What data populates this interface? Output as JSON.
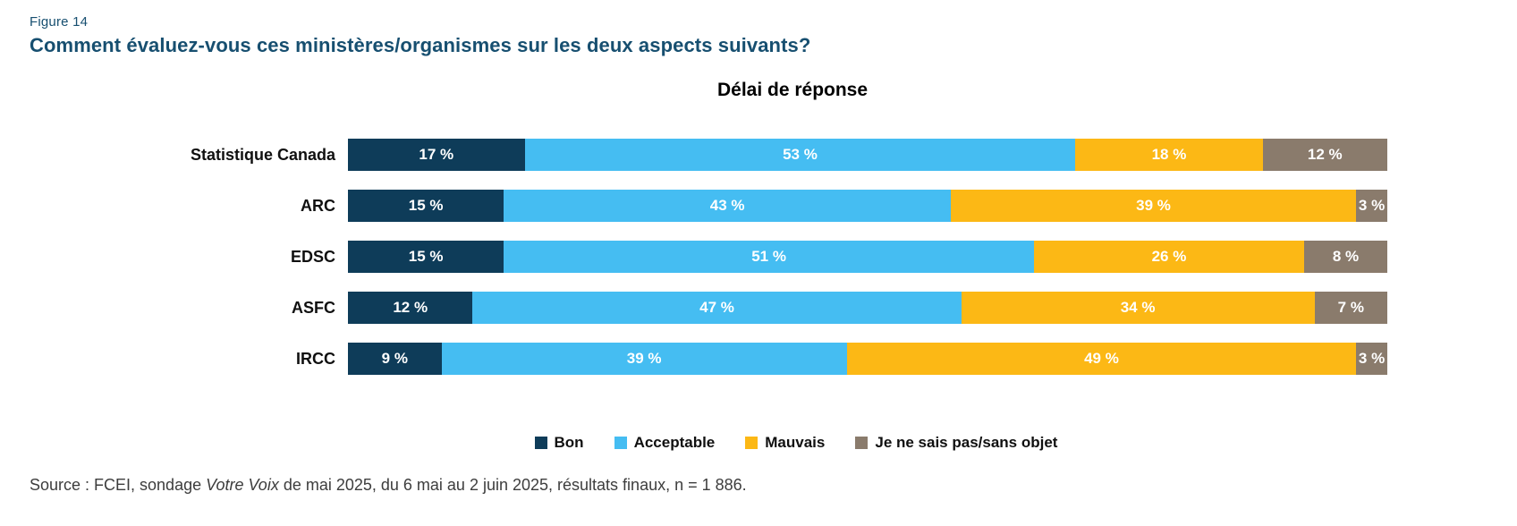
{
  "figure_label": "Figure 14",
  "question": "Comment évaluez-vous ces ministères/organismes sur les deux aspects suivants?",
  "colors": {
    "heading_blue": "#174f70",
    "bon": "#0e3c59",
    "acceptable": "#45bdf2",
    "mauvais": "#fcb815",
    "nsp": "#8a7b6c",
    "source_text": "#3d3d3d"
  },
  "chart_data": {
    "type": "bar",
    "orientation": "horizontal-stacked",
    "title": "Délai de réponse",
    "categories": [
      "Statistique Canada",
      "ARC",
      "EDSC",
      "ASFC",
      "IRCC"
    ],
    "series": [
      {
        "name": "Bon",
        "color": "#0e3c59",
        "values": [
          17,
          15,
          15,
          12,
          9
        ]
      },
      {
        "name": "Acceptable",
        "color": "#45bdf2",
        "values": [
          53,
          43,
          51,
          47,
          39
        ]
      },
      {
        "name": "Mauvais",
        "color": "#fcb815",
        "values": [
          18,
          39,
          26,
          34,
          49
        ]
      },
      {
        "name": "Je ne sais pas/sans objet",
        "color": "#8a7b6c",
        "values": [
          12,
          3,
          8,
          7,
          3
        ]
      }
    ],
    "value_format": "{v} %",
    "xlim": [
      0,
      100
    ],
    "grid": false,
    "legend_position": "bottom",
    "value_labels": "inside-white-bold"
  },
  "source": {
    "prefix": "Source : FCEI, sondage ",
    "italic": "Votre Voix",
    "suffix": " de mai 2025, du 6 mai au 2 juin 2025, résultats finaux, n = 1 886."
  }
}
